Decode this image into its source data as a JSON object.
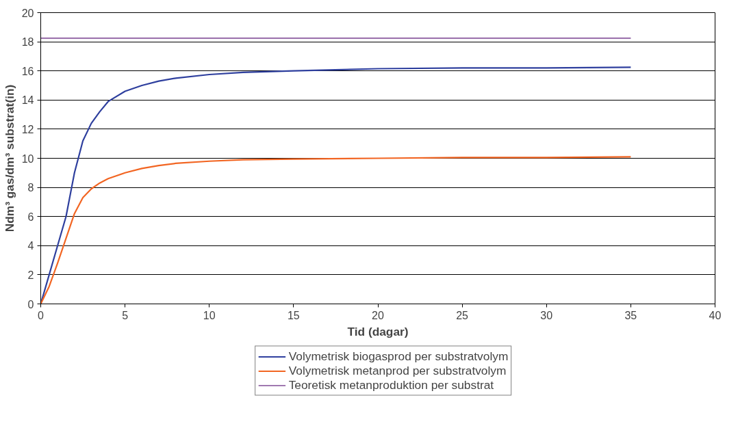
{
  "chart_data": {
    "type": "line",
    "xlabel": "Tid (dagar)",
    "ylabel": "Ndm³ gas/dm³ substrat(in)",
    "xlim": [
      0,
      40
    ],
    "xticks": [
      0,
      5,
      10,
      15,
      20,
      25,
      30,
      35,
      40
    ],
    "ylim": [
      0,
      20
    ],
    "yticks": [
      0,
      2,
      4,
      6,
      8,
      10,
      12,
      14,
      16,
      18,
      20
    ],
    "grid": "y",
    "legend": "bottom",
    "line_style": "solid",
    "marker": "none",
    "series": [
      {
        "name": "Volymetrisk biogasprod per substratvolym",
        "color": "#2e3f9e",
        "x": [
          0,
          0.5,
          1,
          1.5,
          2,
          2.5,
          3,
          3.5,
          4,
          5,
          6,
          7,
          8,
          10,
          12,
          15,
          20,
          25,
          30,
          35
        ],
        "values": [
          0,
          2.0,
          4.0,
          6.0,
          9.0,
          11.2,
          12.4,
          13.2,
          13.9,
          14.6,
          15.0,
          15.3,
          15.5,
          15.75,
          15.9,
          16.0,
          16.15,
          16.2,
          16.2,
          16.25
        ]
      },
      {
        "name": "Volymetrisk metanprod per substratvolym",
        "color": "#f26522",
        "x": [
          0,
          0.5,
          1,
          1.5,
          2,
          2.5,
          3,
          3.5,
          4,
          5,
          6,
          7,
          8,
          10,
          12,
          15,
          20,
          25,
          30,
          35
        ],
        "values": [
          0,
          1.2,
          2.8,
          4.5,
          6.2,
          7.3,
          7.9,
          8.3,
          8.6,
          9.0,
          9.3,
          9.5,
          9.65,
          9.8,
          9.9,
          9.95,
          10.0,
          10.05,
          10.05,
          10.1
        ]
      },
      {
        "name": "Teoretisk metanproduktion per substrat",
        "color": "#a078b0",
        "x": [
          0,
          35
        ],
        "values": [
          18.25,
          18.25
        ]
      }
    ]
  }
}
